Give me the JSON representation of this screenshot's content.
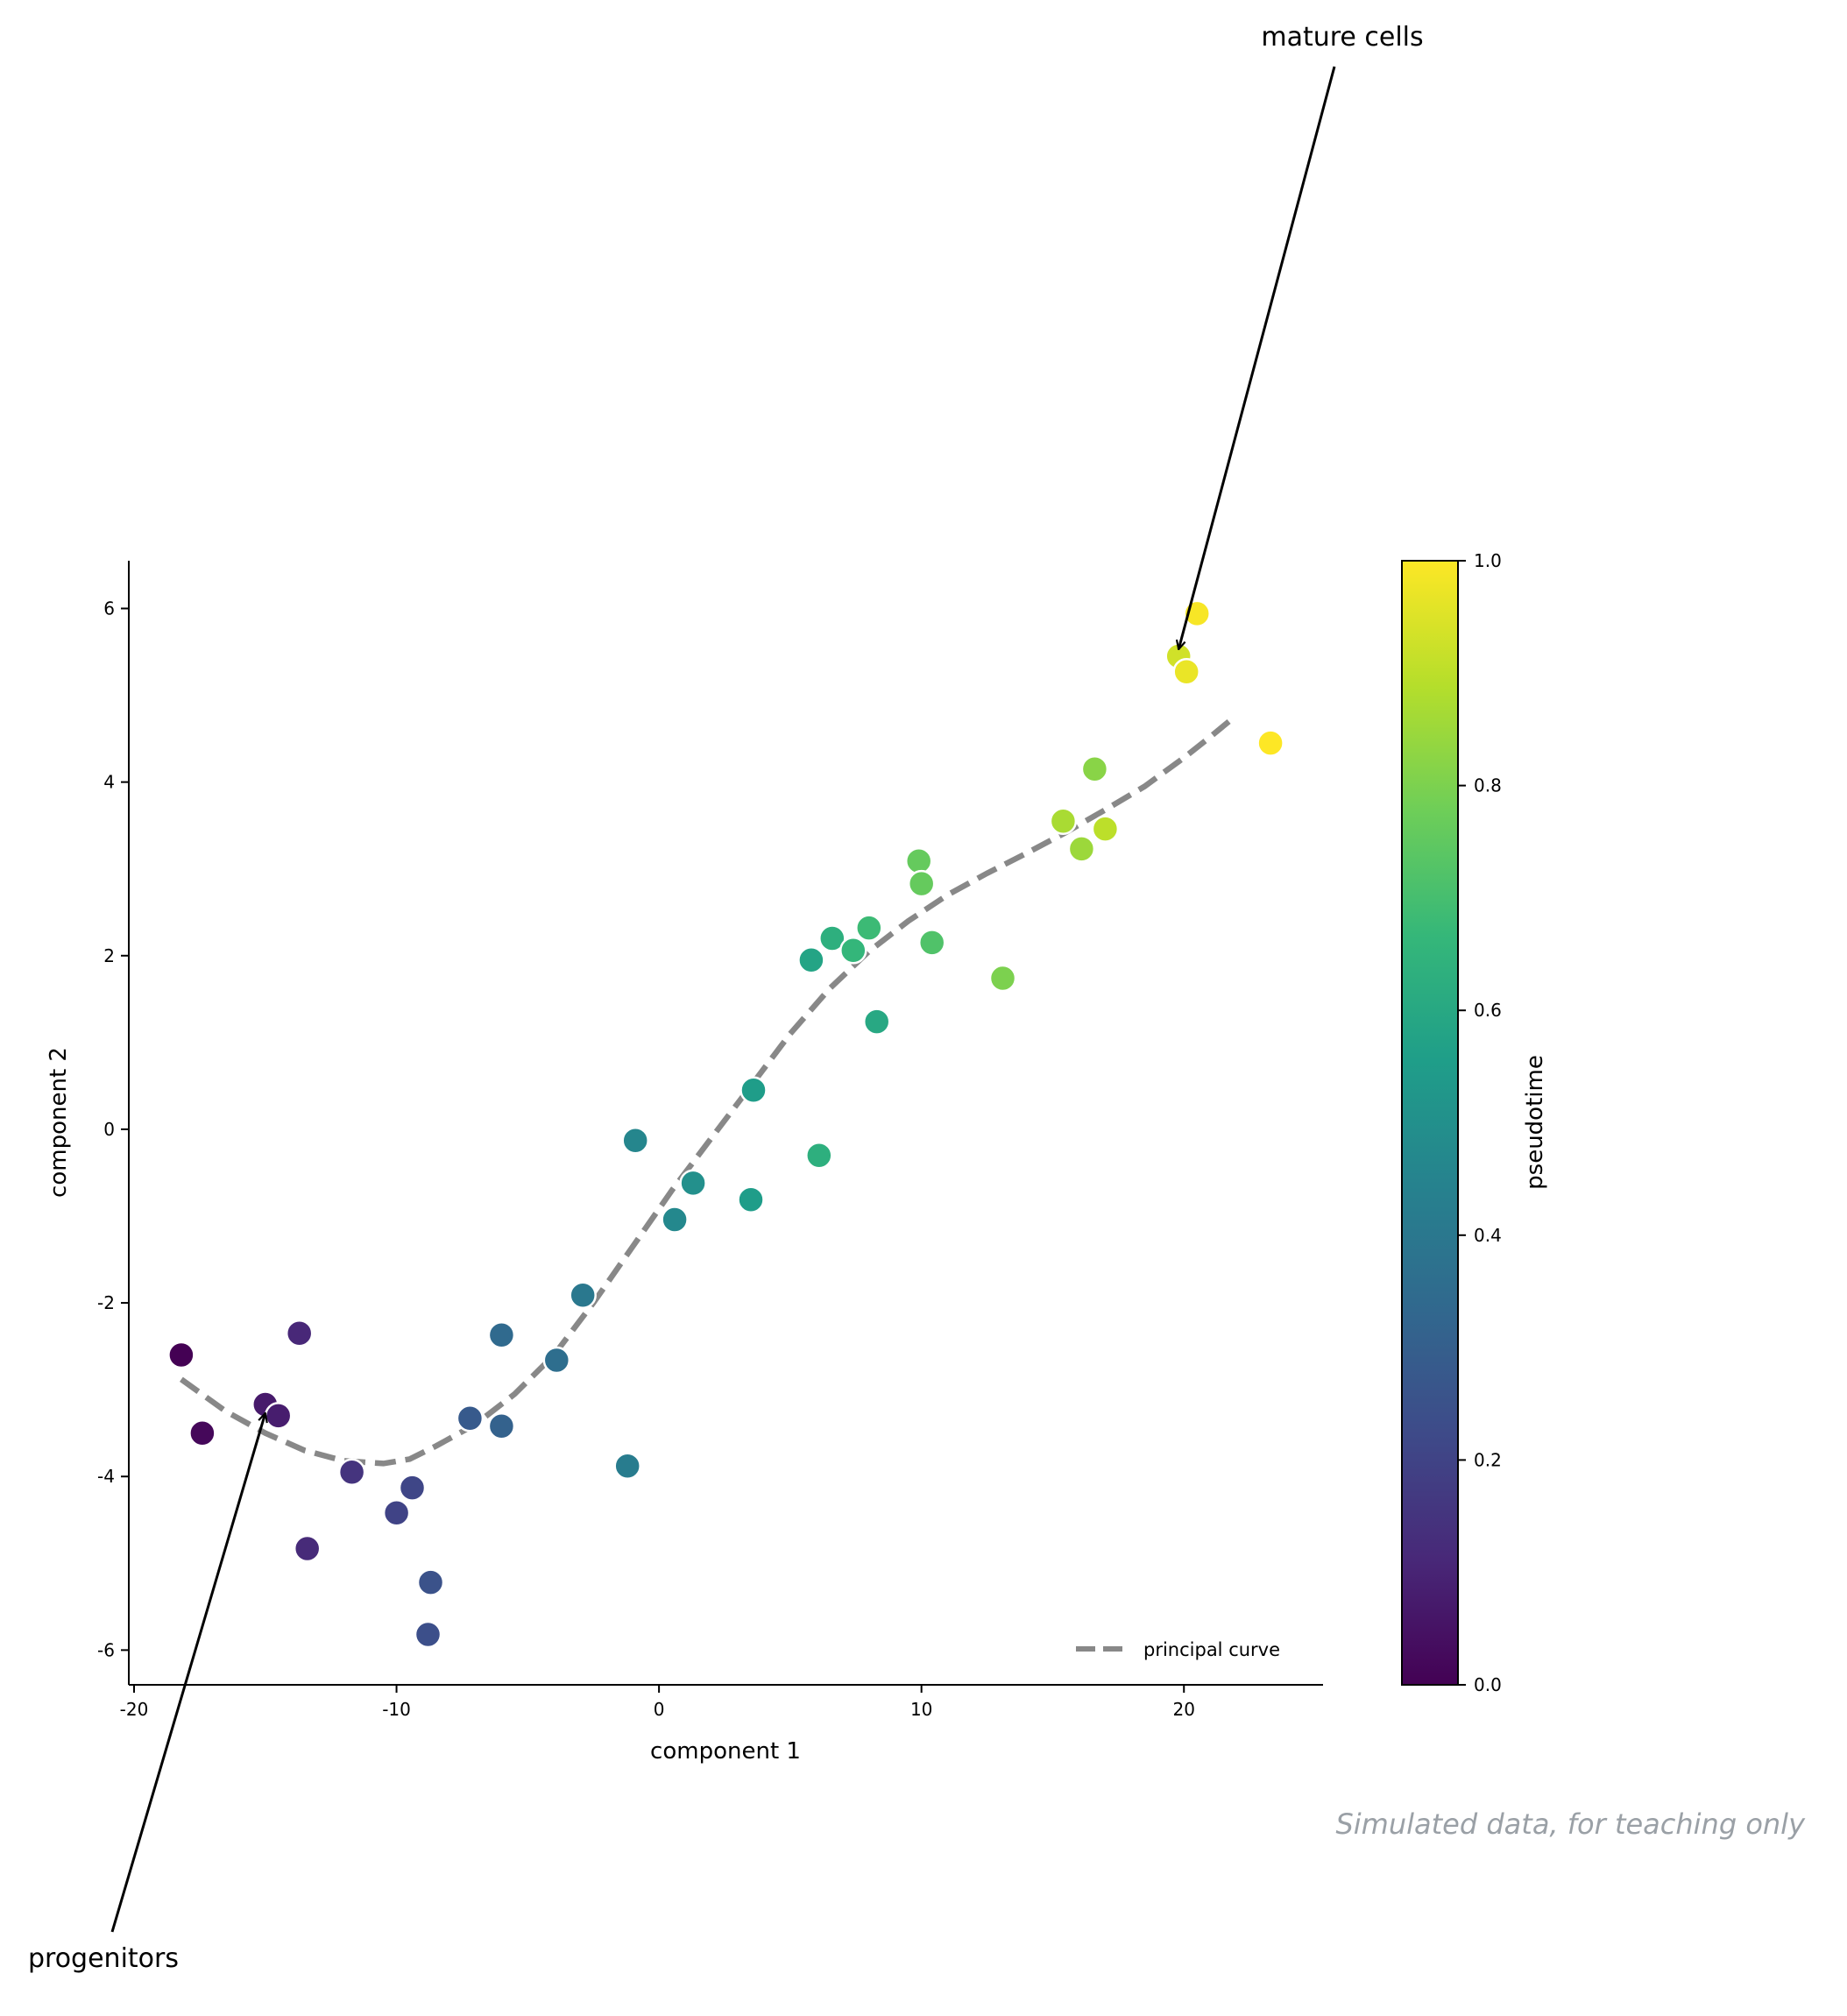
{
  "chart_data": {
    "type": "scatter",
    "xlabel": "component 1",
    "ylabel": "component 2",
    "xlim": [
      -20.2,
      25.3
    ],
    "ylim": [
      -6.4,
      6.55
    ],
    "x_ticks": [
      -20,
      -10,
      0,
      10,
      20
    ],
    "x_tick_labels": [
      "-20",
      "-10",
      "0",
      "10",
      "20"
    ],
    "y_ticks": [
      -6,
      -4,
      -2,
      0,
      2,
      4,
      6
    ],
    "y_tick_labels": [
      "-6",
      "-4",
      "-2",
      "0",
      "2",
      "4",
      "6"
    ],
    "grid": false,
    "colormap": "viridis",
    "colorbar": {
      "label": "pseudotime",
      "range": [
        0,
        1
      ],
      "ticks": [
        0.0,
        0.2,
        0.4,
        0.6,
        0.8,
        1.0
      ],
      "tick_labels": [
        "0.0",
        "0.2",
        "0.4",
        "0.6",
        "0.8",
        "1.0"
      ]
    },
    "points": [
      {
        "x": -18.2,
        "y": -2.6,
        "t": 0.0
      },
      {
        "x": -17.4,
        "y": -3.5,
        "t": 0.02
      },
      {
        "x": -15.0,
        "y": -3.17,
        "t": 0.07
      },
      {
        "x": -14.5,
        "y": -3.3,
        "t": 0.08
      },
      {
        "x": -13.7,
        "y": -2.35,
        "t": 0.11
      },
      {
        "x": -13.4,
        "y": -4.83,
        "t": 0.12
      },
      {
        "x": -11.7,
        "y": -3.95,
        "t": 0.15
      },
      {
        "x": -10.0,
        "y": -4.42,
        "t": 0.2
      },
      {
        "x": -9.4,
        "y": -4.13,
        "t": 0.21
      },
      {
        "x": -8.7,
        "y": -5.22,
        "t": 0.25
      },
      {
        "x": -8.8,
        "y": -5.82,
        "t": 0.24
      },
      {
        "x": -7.2,
        "y": -3.33,
        "t": 0.28
      },
      {
        "x": -6.0,
        "y": -3.42,
        "t": 0.31
      },
      {
        "x": -6.0,
        "y": -2.37,
        "t": 0.34
      },
      {
        "x": -3.9,
        "y": -2.66,
        "t": 0.36
      },
      {
        "x": -2.9,
        "y": -1.91,
        "t": 0.4
      },
      {
        "x": -1.2,
        "y": -3.88,
        "t": 0.42
      },
      {
        "x": -0.9,
        "y": -0.13,
        "t": 0.46
      },
      {
        "x": 0.6,
        "y": -1.04,
        "t": 0.47
      },
      {
        "x": 1.3,
        "y": -0.62,
        "t": 0.5
      },
      {
        "x": 3.5,
        "y": -0.81,
        "t": 0.55
      },
      {
        "x": 3.6,
        "y": 0.45,
        "t": 0.55
      },
      {
        "x": 5.8,
        "y": 1.95,
        "t": 0.58
      },
      {
        "x": 6.1,
        "y": -0.3,
        "t": 0.63
      },
      {
        "x": 6.6,
        "y": 2.2,
        "t": 0.63
      },
      {
        "x": 7.4,
        "y": 2.06,
        "t": 0.66
      },
      {
        "x": 8.0,
        "y": 2.32,
        "t": 0.68
      },
      {
        "x": 8.3,
        "y": 1.24,
        "t": 0.6
      },
      {
        "x": 9.9,
        "y": 3.09,
        "t": 0.76
      },
      {
        "x": 10.0,
        "y": 2.83,
        "t": 0.76
      },
      {
        "x": 10.4,
        "y": 2.15,
        "t": 0.72
      },
      {
        "x": 13.1,
        "y": 1.74,
        "t": 0.8
      },
      {
        "x": 15.4,
        "y": 3.55,
        "t": 0.87
      },
      {
        "x": 16.1,
        "y": 3.23,
        "t": 0.85
      },
      {
        "x": 16.6,
        "y": 4.15,
        "t": 0.82
      },
      {
        "x": 17.0,
        "y": 3.46,
        "t": 0.9
      },
      {
        "x": 19.8,
        "y": 5.45,
        "t": 0.93
      },
      {
        "x": 20.1,
        "y": 5.27,
        "t": 0.97
      },
      {
        "x": 20.5,
        "y": 5.94,
        "t": 0.99
      },
      {
        "x": 23.3,
        "y": 4.45,
        "t": 1.0
      }
    ],
    "principal_curve": {
      "name": "principal curve",
      "color": "#888888",
      "x": [
        -18.2,
        -16.5,
        -15.0,
        -13.5,
        -12.0,
        -10.5,
        -9.5,
        -8.5,
        -7.0,
        -5.5,
        -4.0,
        -2.5,
        -1.0,
        0.5,
        2.0,
        3.5,
        5.0,
        6.5,
        8.0,
        9.5,
        11.0,
        12.5,
        14.0,
        15.5,
        17.0,
        18.5,
        20.0,
        21.0,
        21.8
      ],
      "y": [
        -2.88,
        -3.25,
        -3.5,
        -3.7,
        -3.82,
        -3.85,
        -3.8,
        -3.65,
        -3.4,
        -3.05,
        -2.6,
        -2.0,
        -1.35,
        -0.7,
        -0.1,
        0.5,
        1.1,
        1.62,
        2.05,
        2.4,
        2.7,
        2.95,
        3.18,
        3.42,
        3.68,
        3.95,
        4.28,
        4.52,
        4.72
      ]
    },
    "annotations": [
      {
        "text": "mature cells",
        "target_x": 19.8,
        "target_y": 5.45
      },
      {
        "text": "progenitors",
        "target_x": -15.0,
        "target_y": -3.17
      }
    ],
    "legend_location": "lower-right"
  },
  "footnote": "Simulated data, for teaching only"
}
